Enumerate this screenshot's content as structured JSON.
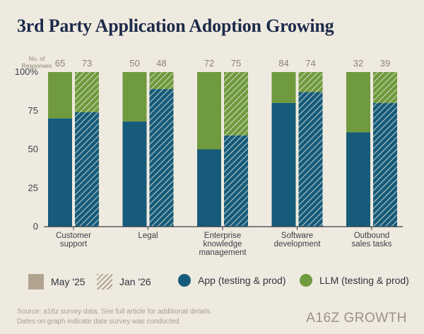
{
  "chart_data": {
    "type": "bar",
    "title": "3rd Party Application Adoption Growing",
    "responses_label": [
      "No. of",
      "Responses"
    ],
    "categories": [
      [
        "Customer",
        "support"
      ],
      [
        "Legal"
      ],
      [
        "Enterprise",
        "knowledge",
        "management"
      ],
      [
        "Software",
        "development"
      ],
      [
        "Outbound",
        "sales tasks"
      ]
    ],
    "periods": [
      "May '25",
      "Jan '26"
    ],
    "responses": [
      [
        65,
        73
      ],
      [
        50,
        48
      ],
      [
        72,
        75
      ],
      [
        84,
        74
      ],
      [
        32,
        39
      ]
    ],
    "series": [
      {
        "name": "App (testing & prod)",
        "color": "#165b7a",
        "values": [
          [
            70,
            74
          ],
          [
            68,
            89
          ],
          [
            50,
            59
          ],
          [
            80,
            87
          ],
          [
            61,
            80
          ]
        ]
      },
      {
        "name": "LLM (testing & prod)",
        "color": "#6f9a3d",
        "values": [
          [
            30,
            26
          ],
          [
            32,
            11
          ],
          [
            50,
            41
          ],
          [
            20,
            13
          ],
          [
            39,
            20
          ]
        ]
      }
    ],
    "y_ticks": [
      "0",
      "25",
      "50",
      "75",
      "100%"
    ],
    "ylim": [
      0,
      100
    ]
  },
  "legend": {
    "may": "May '25",
    "jan": "Jan '26",
    "app": "App (testing & prod)",
    "llm": "LLM (testing & prod)"
  },
  "colors": {
    "app": "#165b7a",
    "llm": "#6f9a3d",
    "period_swatch": "#b1a48f"
  },
  "footer": {
    "line1": "Source: a16z survey data. See full article for additional details.",
    "line2": "Dates on graph indicate date survey was conducted"
  },
  "brand": "A16Z GROWTH"
}
